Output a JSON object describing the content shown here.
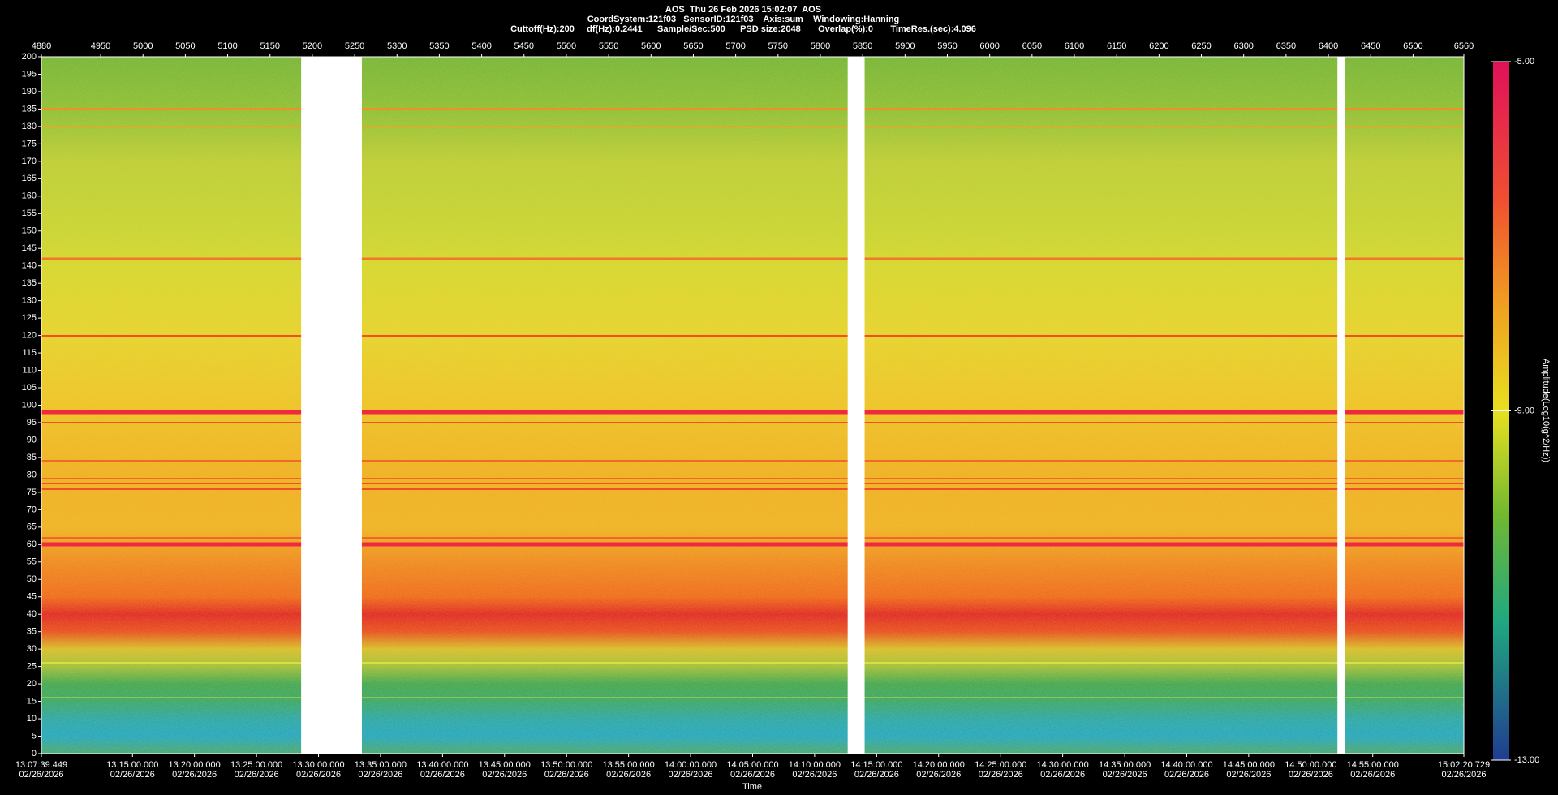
{
  "chart_data": {
    "type": "spectrogram",
    "title": [
      "AOS  Thu 26 Feb 2026 15:02:07  AOS",
      "CoordSystem:121f03   SensorID:121f03    Axis:sum    Windowing:Hanning",
      "Cuttoff(Hz):200     df(Hz):0.2441      Sample/Sec:500      PSD size:2048       Overlap(%):0       TimeRes.(sec):4.096"
    ],
    "xlabel": "Time",
    "xlim": [
      4880,
      6560
    ],
    "xticks": [
      4880,
      4950,
      5000,
      5050,
      5100,
      5150,
      5200,
      5250,
      5300,
      5350,
      5400,
      5450,
      5500,
      5550,
      5600,
      5650,
      5700,
      5750,
      5800,
      5850,
      5900,
      5950,
      6000,
      6050,
      6100,
      6150,
      6200,
      6250,
      6300,
      6350,
      6400,
      6450,
      6500,
      6560
    ],
    "x_time_ticks": [
      {
        "value": 4880,
        "label": "13:07:39.449",
        "date": "02/26/2026"
      },
      {
        "value": 4987.6,
        "label": "13:15:00.000",
        "date": "02/26/2026"
      },
      {
        "value": 5060.8,
        "label": "13:20:00.000",
        "date": "02/26/2026"
      },
      {
        "value": 5134.1,
        "label": "13:25:00.000",
        "date": "02/26/2026"
      },
      {
        "value": 5207.3,
        "label": "13:30:00.000",
        "date": "02/26/2026"
      },
      {
        "value": 5280.5,
        "label": "13:35:00.000",
        "date": "02/26/2026"
      },
      {
        "value": 5353.8,
        "label": "13:40:00.000",
        "date": "02/26/2026"
      },
      {
        "value": 5427.0,
        "label": "13:45:00.000",
        "date": "02/26/2026"
      },
      {
        "value": 5500.3,
        "label": "13:50:00.000",
        "date": "02/26/2026"
      },
      {
        "value": 5573.5,
        "label": "13:55:00.000",
        "date": "02/26/2026"
      },
      {
        "value": 5646.7,
        "label": "14:00:00.000",
        "date": "02/26/2026"
      },
      {
        "value": 5720.0,
        "label": "14:05:00.000",
        "date": "02/26/2026"
      },
      {
        "value": 5793.2,
        "label": "14:10:00.000",
        "date": "02/26/2026"
      },
      {
        "value": 5866.5,
        "label": "14:15:00.000",
        "date": "02/26/2026"
      },
      {
        "value": 5939.7,
        "label": "14:20:00.000",
        "date": "02/26/2026"
      },
      {
        "value": 6013.0,
        "label": "14:25:00.000",
        "date": "02/26/2026"
      },
      {
        "value": 6086.2,
        "label": "14:30:00.000",
        "date": "02/26/2026"
      },
      {
        "value": 6159.5,
        "label": "14:35:00.000",
        "date": "02/26/2026"
      },
      {
        "value": 6232.7,
        "label": "14:40:00.000",
        "date": "02/26/2026"
      },
      {
        "value": 6305.9,
        "label": "14:45:00.000",
        "date": "02/26/2026"
      },
      {
        "value": 6379.2,
        "label": "14:50:00.000",
        "date": "02/26/2026"
      },
      {
        "value": 6452.4,
        "label": "14:55:00.000",
        "date": "02/26/2026"
      },
      {
        "value": 6560,
        "label": "15:02:20.729",
        "date": "02/26/2026"
      }
    ],
    "ylim": [
      0,
      200
    ],
    "yticks": [
      0,
      5,
      10,
      15,
      20,
      25,
      30,
      35,
      40,
      45,
      50,
      55,
      60,
      65,
      70,
      75,
      80,
      85,
      90,
      95,
      100,
      105,
      110,
      115,
      120,
      125,
      130,
      135,
      140,
      145,
      150,
      155,
      160,
      165,
      170,
      175,
      180,
      185,
      190,
      195,
      200
    ],
    "gaps": [
      [
        5186.8,
        5258.5
      ],
      [
        5832.3,
        5852.3
      ],
      [
        6410.7,
        6420.1
      ]
    ],
    "colorbar": {
      "label": "Amplitude(Log10(g^2/Hz))",
      "lim": [
        -13,
        -5
      ],
      "ticks": [
        {
          "value": -5,
          "label": "-5.00"
        },
        {
          "value": -9,
          "label": "-9.00"
        },
        {
          "value": -13,
          "label": "-13.00"
        }
      ]
    }
  }
}
